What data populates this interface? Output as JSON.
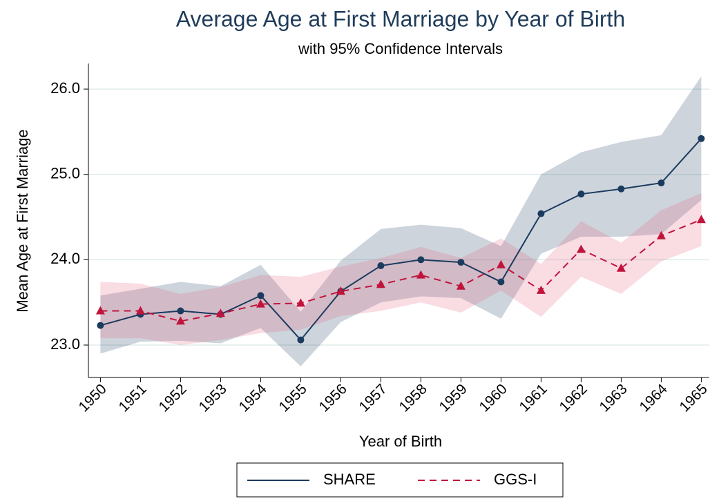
{
  "chart_data": {
    "type": "line_ci",
    "title": "Average Age at First Marriage by Year of Birth",
    "subtitle": "with 95% Confidence Intervals",
    "x_label": "Year of Birth",
    "y_label": "Mean Age at First Marriage",
    "x": [
      1950,
      1951,
      1952,
      1953,
      1954,
      1955,
      1956,
      1957,
      1958,
      1959,
      1960,
      1961,
      1962,
      1963,
      1964,
      1965
    ],
    "xlim": [
      1949.7,
      1965.2
    ],
    "xticks": [
      1950,
      1951,
      1952,
      1953,
      1954,
      1955,
      1956,
      1957,
      1958,
      1959,
      1960,
      1961,
      1962,
      1963,
      1964,
      1965
    ],
    "ylim": [
      22.62,
      26.3
    ],
    "yticks": [
      {
        "value": 23,
        "label": "23.0"
      },
      {
        "value": 24,
        "label": "24.0"
      },
      {
        "value": 25,
        "label": "25.0"
      },
      {
        "value": 26,
        "label": "26.0"
      }
    ],
    "grid": true,
    "series": [
      {
        "name": "SHARE",
        "color": "#1a3b5e",
        "band_color": "#1a3b5e",
        "marker": "circle",
        "dash": false,
        "values": [
          23.23,
          23.36,
          23.4,
          23.36,
          23.58,
          23.06,
          23.63,
          23.93,
          24.0,
          23.97,
          23.74,
          24.54,
          24.77,
          24.83,
          24.9,
          25.42
        ],
        "upper": [
          23.58,
          23.66,
          23.74,
          23.69,
          23.94,
          23.39,
          23.99,
          24.36,
          24.41,
          24.37,
          24.16,
          25.0,
          25.26,
          25.38,
          25.46,
          26.15
        ],
        "lower": [
          22.9,
          23.04,
          23.05,
          23.02,
          23.2,
          22.75,
          23.27,
          23.5,
          23.57,
          23.55,
          23.31,
          24.07,
          24.27,
          24.27,
          24.3,
          24.7
        ]
      },
      {
        "name": "GGS-I",
        "color": "#c0143c",
        "band_color": "#e8607e",
        "marker": "triangle",
        "dash": true,
        "values": [
          23.4,
          23.4,
          23.28,
          23.37,
          23.48,
          23.49,
          23.63,
          23.71,
          23.82,
          23.69,
          23.94,
          23.64,
          24.12,
          23.9,
          24.28,
          24.47
        ],
        "upper": [
          23.74,
          23.72,
          23.6,
          23.68,
          23.82,
          23.8,
          23.92,
          24.02,
          24.15,
          24.02,
          24.25,
          23.95,
          24.45,
          24.2,
          24.58,
          24.78
        ],
        "lower": [
          23.08,
          23.08,
          23.0,
          23.06,
          23.14,
          23.18,
          23.34,
          23.4,
          23.5,
          23.38,
          23.64,
          23.33,
          23.8,
          23.6,
          23.98,
          24.16
        ]
      }
    ]
  }
}
